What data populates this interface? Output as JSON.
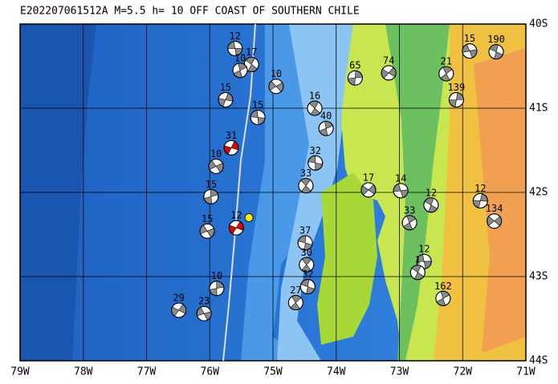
{
  "title": "E202207061512A M=5.5 h= 10 OFF COAST OF SOUTHERN CHILE",
  "map": {
    "xlim": [
      -79,
      -71
    ],
    "ylim": [
      -44,
      -40
    ],
    "xticks": [
      {
        "value": -79,
        "label": "79W"
      },
      {
        "value": -78,
        "label": "78W"
      },
      {
        "value": -77,
        "label": "77W"
      },
      {
        "value": -76,
        "label": "76W"
      },
      {
        "value": -75,
        "label": "75W"
      },
      {
        "value": -74,
        "label": "74W"
      },
      {
        "value": -73,
        "label": "73W"
      },
      {
        "value": -72,
        "label": "72W"
      },
      {
        "value": -71,
        "label": "71W"
      }
    ],
    "yticks": [
      {
        "value": -40,
        "label": "40S"
      },
      {
        "value": -41,
        "label": "41S"
      },
      {
        "value": -42,
        "label": "42S"
      },
      {
        "value": -43,
        "label": "43S"
      },
      {
        "value": -44,
        "label": "44S"
      }
    ],
    "epicenter": {
      "lon": -75.38,
      "lat": -42.3,
      "color": "#ffee00"
    },
    "events": [
      {
        "label": "12",
        "lon": -75.6,
        "lat": -40.29
      },
      {
        "label": "17",
        "lon": -75.34,
        "lat": -40.48
      },
      {
        "label": "10",
        "lon": -75.52,
        "lat": -40.55
      },
      {
        "label": "15",
        "lon": -75.75,
        "lat": -40.9
      },
      {
        "label": "10",
        "lon": -74.95,
        "lat": -40.74
      },
      {
        "label": "15",
        "lon": -75.24,
        "lat": -41.11
      },
      {
        "label": "16",
        "lon": -74.34,
        "lat": -41.0
      },
      {
        "label": "40",
        "lon": -74.16,
        "lat": -41.24
      },
      {
        "label": "31",
        "lon": -75.66,
        "lat": -41.47,
        "color": "#e00000"
      },
      {
        "label": "10",
        "lon": -75.9,
        "lat": -41.69
      },
      {
        "label": "32",
        "lon": -74.33,
        "lat": -41.65
      },
      {
        "label": "33",
        "lon": -74.48,
        "lat": -41.92
      },
      {
        "label": "15",
        "lon": -75.98,
        "lat": -42.05
      },
      {
        "label": "12",
        "lon": -75.58,
        "lat": -42.42,
        "color": "#e00000"
      },
      {
        "label": "15",
        "lon": -76.04,
        "lat": -42.46
      },
      {
        "label": "37",
        "lon": -74.49,
        "lat": -42.6
      },
      {
        "label": "30",
        "lon": -74.47,
        "lat": -42.86
      },
      {
        "label": "10",
        "lon": -75.89,
        "lat": -43.14
      },
      {
        "label": "29",
        "lon": -76.49,
        "lat": -43.4
      },
      {
        "label": "23",
        "lon": -76.09,
        "lat": -43.44
      },
      {
        "label": "32",
        "lon": -74.45,
        "lat": -43.12
      },
      {
        "label": "27",
        "lon": -74.64,
        "lat": -43.31
      },
      {
        "label": "65",
        "lon": -73.7,
        "lat": -40.64
      },
      {
        "label": "74",
        "lon": -73.17,
        "lat": -40.58
      },
      {
        "label": "15",
        "lon": -71.89,
        "lat": -40.32
      },
      {
        "label": "190",
        "lon": -71.47,
        "lat": -40.33
      },
      {
        "label": "21",
        "lon": -72.26,
        "lat": -40.59
      },
      {
        "label": "139",
        "lon": -72.1,
        "lat": -40.9
      },
      {
        "label": "17",
        "lon": -73.49,
        "lat": -41.97
      },
      {
        "label": "14",
        "lon": -72.98,
        "lat": -41.98
      },
      {
        "label": "12",
        "lon": -72.5,
        "lat": -42.15
      },
      {
        "label": "33",
        "lon": -72.84,
        "lat": -42.36
      },
      {
        "label": "12",
        "lon": -71.72,
        "lat": -42.1
      },
      {
        "label": "134",
        "lon": -71.5,
        "lat": -42.34
      },
      {
        "label": "12",
        "lon": -72.61,
        "lat": -42.82
      },
      {
        "label": "1",
        "lon": -72.71,
        "lat": -42.95
      },
      {
        "label": "162",
        "lon": -72.31,
        "lat": -43.26
      }
    ]
  }
}
